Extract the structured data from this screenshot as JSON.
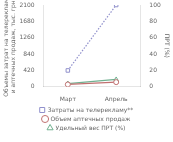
{
  "chart_data": {
    "type": "line",
    "categories": [
      "Март",
      "Апрель"
    ],
    "series": [
      {
        "name": "Затраты на телерекламу**",
        "color": "#9090cc",
        "values": [
          420,
          2100
        ],
        "marker": "square",
        "line_style": "dotted"
      },
      {
        "name": "Объем аптечных продаж",
        "color": "#c07070",
        "values": [
          60,
          120
        ],
        "marker": "circle",
        "line_style": "solid"
      },
      {
        "name": "Удельный вес ПРТ (%)",
        "color": "#70b090",
        "values": [
          4,
          9
        ],
        "marker": "triangle",
        "line_style": "solid",
        "axis": "y2"
      }
    ],
    "ylabel": "Объемы затрат на телерекламу\nи аптечных продаж, тыс. грн.",
    "y2label": "ПРТ (%)",
    "ylim": [
      0,
      2100
    ],
    "yticks": [
      0,
      420,
      840,
      1260,
      1680,
      2100
    ],
    "y2lim": [
      0,
      100
    ],
    "y2ticks": [
      0,
      20,
      40,
      60,
      80,
      100
    ],
    "grid": false,
    "legend": "bottom"
  }
}
